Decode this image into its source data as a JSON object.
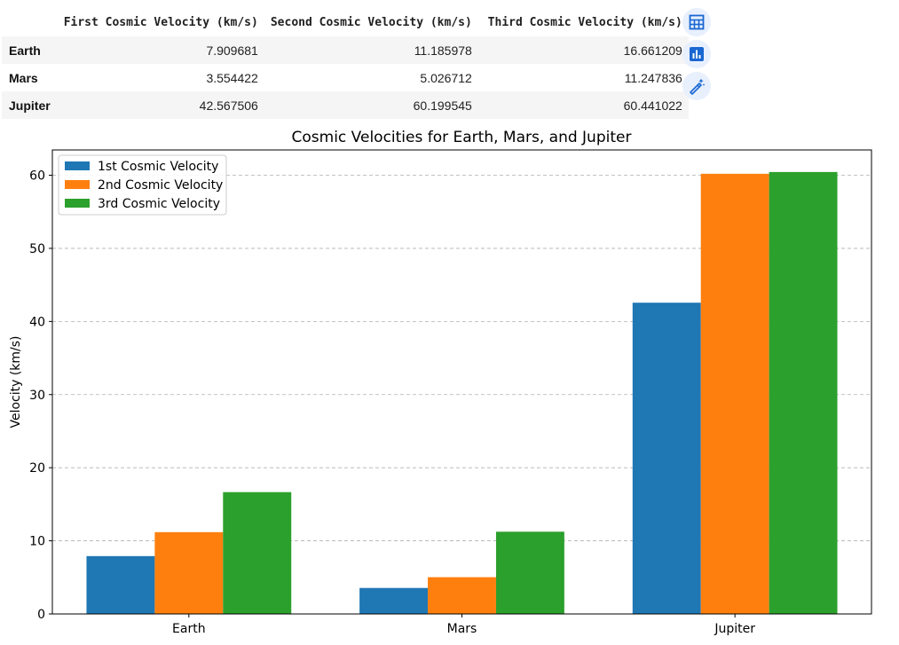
{
  "table": {
    "columns": [
      "First Cosmic Velocity (km/s)",
      "Second Cosmic Velocity (km/s)",
      "Third Cosmic Velocity (km/s)"
    ],
    "rows": [
      {
        "label": "Earth",
        "values": [
          "7.909681",
          "11.185978",
          "16.661209"
        ]
      },
      {
        "label": "Mars",
        "values": [
          "3.554422",
          "5.026712",
          "11.247836"
        ]
      },
      {
        "label": "Jupiter",
        "values": [
          "42.567506",
          "60.199545",
          "60.441022"
        ]
      }
    ]
  },
  "toolbar": {
    "icons": [
      "table-icon",
      "bar-chart-icon",
      "magic-wand-icon"
    ],
    "accent": "#1967d2"
  },
  "chart_data": {
    "type": "bar",
    "title": "Cosmic Velocities for Earth, Mars, and Jupiter",
    "xlabel": "",
    "ylabel": "Velocity (km/s)",
    "categories": [
      "Earth",
      "Mars",
      "Jupiter"
    ],
    "series": [
      {
        "name": "1st Cosmic Velocity",
        "values": [
          7.909681,
          3.554422,
          42.567506
        ],
        "color": "#1f77b4"
      },
      {
        "name": "2nd Cosmic Velocity",
        "values": [
          11.185978,
          5.026712,
          60.199545
        ],
        "color": "#ff7f0e"
      },
      {
        "name": "3rd Cosmic Velocity",
        "values": [
          16.661209,
          11.247836,
          60.441022
        ],
        "color": "#2ca02c"
      }
    ],
    "ylim": [
      0,
      63.46
    ],
    "yticks": [
      0,
      10,
      20,
      30,
      40,
      50,
      60
    ],
    "grid": "y-dashed",
    "legend_position": "top-left"
  }
}
